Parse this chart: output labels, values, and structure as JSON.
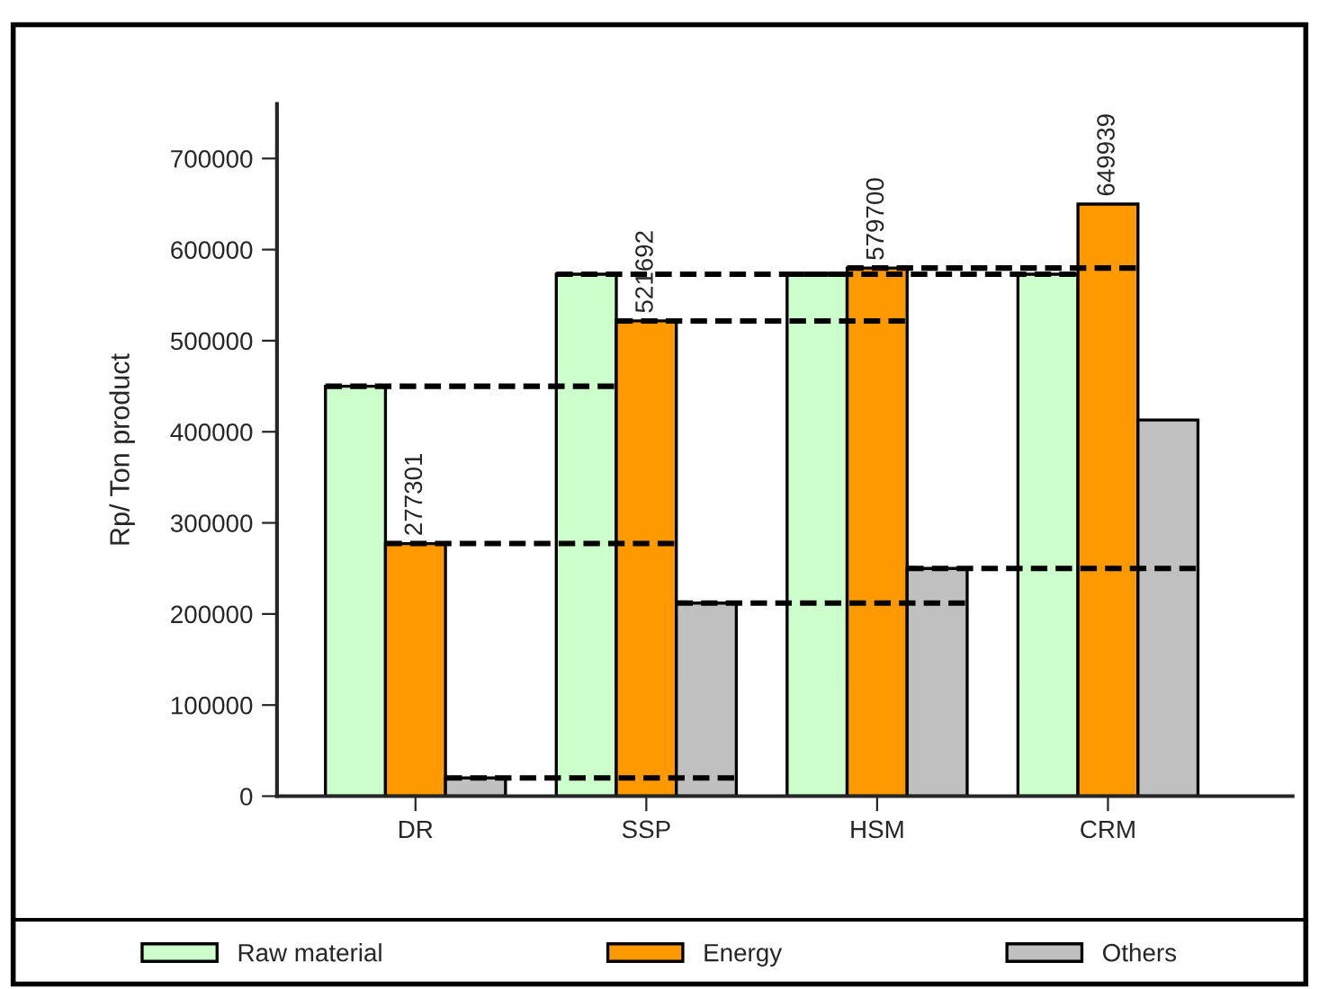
{
  "chart_data": {
    "type": "bar",
    "ylabel": "Rp/ Ton product",
    "categories": [
      "DR",
      "SSP",
      "HSM",
      "CRM"
    ],
    "series": [
      {
        "name": "Raw material",
        "color": "#ccffcc",
        "values": [
          450000,
          573000,
          573000,
          573000
        ]
      },
      {
        "name": "Energy",
        "color": "#ff9900",
        "values": [
          277301,
          521692,
          579700,
          649939
        ],
        "value_labels": [
          "277301",
          "521692",
          "579700",
          "649939"
        ]
      },
      {
        "name": "Others",
        "color": "#c0c0c0",
        "values": [
          20000,
          212000,
          250000,
          413000
        ]
      }
    ],
    "ylim": [
      0,
      760000
    ],
    "yticks": [
      0,
      100000,
      200000,
      300000,
      400000,
      500000,
      600000,
      700000
    ],
    "grid": false,
    "legend": "bottom"
  }
}
